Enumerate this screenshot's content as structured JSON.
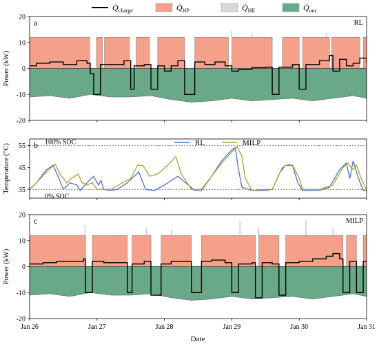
{
  "figure": {
    "legend": [
      {
        "id": "charge",
        "label": "Q̇",
        "sub": "charge",
        "kind": "line",
        "color": "#000000"
      },
      {
        "id": "hp",
        "label": "Q̇",
        "sub": "HP",
        "kind": "patch",
        "color": "#f4a08a"
      },
      {
        "id": "he",
        "label": "Q̇",
        "sub": "HE",
        "kind": "patch",
        "color": "#d9d9d9"
      },
      {
        "id": "out",
        "label": "Q̇",
        "sub": "out",
        "kind": "patch",
        "color": "#6aa88a"
      }
    ],
    "xlabel": "Date",
    "x_ticks": [
      "Jan 26",
      "Jan 27",
      "Jan 28",
      "Jan 29",
      "Jan 30",
      "Jan 31"
    ]
  },
  "colors": {
    "hp": "#f4a08a",
    "he": "#d9d9d9",
    "out": "#6aa88a",
    "rl": "#4a6fd0",
    "milp": "#a6a22c",
    "charge": "#000000"
  },
  "chart_data": [
    {
      "panel": "a",
      "tag": "RL",
      "type": "area",
      "ylabel": "Power (kW)",
      "ylim": [
        -20,
        20
      ],
      "yticks": [
        -20,
        -10,
        0,
        10,
        20
      ],
      "x_unit": "days since Jan 26",
      "hp_level": 12,
      "he_spikes": [
        [
          3.0,
          14.5
        ],
        [
          3.3,
          13.8
        ],
        [
          4.4,
          13.6
        ]
      ],
      "hp_off_intervals": [
        [
          0.89,
          0.99
        ],
        [
          1.08,
          1.11
        ],
        [
          1.48,
          1.58
        ],
        [
          1.78,
          1.9
        ],
        [
          2.3,
          2.45
        ],
        [
          2.95,
          3.0
        ],
        [
          3.6,
          3.75
        ],
        [
          4.0,
          4.05
        ],
        [
          4.45,
          4.48
        ],
        [
          4.9,
          4.95
        ]
      ],
      "series": [
        {
          "name": "Q_out",
          "values": [
            [
              0,
              -11
            ],
            [
              0.3,
              -10.5
            ],
            [
              0.6,
              -11.5
            ],
            [
              0.9,
              -10
            ],
            [
              1.2,
              -11
            ],
            [
              1.5,
              -11
            ],
            [
              1.8,
              -10.5
            ],
            [
              2.1,
              -12
            ],
            [
              2.4,
              -13
            ],
            [
              2.7,
              -12.5
            ],
            [
              3.0,
              -11.5
            ],
            [
              3.3,
              -12.5
            ],
            [
              3.6,
              -12
            ],
            [
              3.9,
              -11.5
            ],
            [
              4.2,
              -12.5
            ],
            [
              4.5,
              -11.5
            ],
            [
              4.8,
              -10.5
            ],
            [
              5.0,
              -11.5
            ]
          ]
        },
        {
          "name": "Q_charge",
          "values": [
            [
              0,
              1
            ],
            [
              0.1,
              2
            ],
            [
              0.3,
              2.5
            ],
            [
              0.5,
              1.5
            ],
            [
              0.7,
              3
            ],
            [
              0.85,
              2
            ],
            [
              0.9,
              -2
            ],
            [
              0.95,
              -10
            ],
            [
              1.05,
              1.5
            ],
            [
              1.2,
              1.5
            ],
            [
              1.4,
              3
            ],
            [
              1.5,
              -8
            ],
            [
              1.55,
              1
            ],
            [
              1.7,
              1.5
            ],
            [
              1.8,
              -8
            ],
            [
              1.9,
              1
            ],
            [
              2.0,
              -1
            ],
            [
              2.1,
              1
            ],
            [
              2.2,
              3
            ],
            [
              2.3,
              -10
            ],
            [
              2.45,
              2.5
            ],
            [
              2.6,
              1.5
            ],
            [
              2.75,
              2.5
            ],
            [
              2.9,
              1
            ],
            [
              3.0,
              -1
            ],
            [
              3.1,
              -0.3
            ],
            [
              3.3,
              0.3
            ],
            [
              3.5,
              0.5
            ],
            [
              3.6,
              -10
            ],
            [
              3.7,
              0.5
            ],
            [
              3.9,
              1.5
            ],
            [
              4.0,
              -8
            ],
            [
              4.1,
              1.5
            ],
            [
              4.3,
              3
            ],
            [
              4.45,
              5
            ],
            [
              4.5,
              -1
            ],
            [
              4.6,
              3.5
            ],
            [
              4.7,
              1
            ],
            [
              4.8,
              2
            ],
            [
              4.9,
              4
            ],
            [
              5.0,
              2
            ]
          ]
        }
      ]
    },
    {
      "panel": "b",
      "type": "line",
      "ylabel": "Temperature (°C)",
      "ylim": [
        31,
        58
      ],
      "yticks": [
        35,
        45,
        55
      ],
      "x_unit": "days since Jan 26",
      "annotations": [
        {
          "text": "100% SOC",
          "y": 55
        },
        {
          "text": "0% SOC",
          "y": 35
        }
      ],
      "series": [
        {
          "name": "RL",
          "values": [
            [
              0,
              35
            ],
            [
              0.1,
              38
            ],
            [
              0.25,
              44
            ],
            [
              0.35,
              46
            ],
            [
              0.42,
              41
            ],
            [
              0.5,
              35
            ],
            [
              0.6,
              38
            ],
            [
              0.7,
              37
            ],
            [
              0.75,
              34.5
            ],
            [
              0.85,
              38
            ],
            [
              0.95,
              41
            ],
            [
              1.02,
              37
            ],
            [
              1.06,
              39
            ],
            [
              1.1,
              35
            ],
            [
              1.2,
              34.5
            ],
            [
              1.3,
              35
            ],
            [
              1.45,
              38
            ],
            [
              1.62,
              43
            ],
            [
              1.72,
              35
            ],
            [
              1.85,
              34.5
            ],
            [
              2.0,
              37
            ],
            [
              2.2,
              41
            ],
            [
              2.45,
              34.5
            ],
            [
              2.55,
              34.5
            ],
            [
              2.7,
              41
            ],
            [
              2.85,
              48
            ],
            [
              3.0,
              53
            ],
            [
              3.05,
              54
            ],
            [
              3.1,
              44
            ],
            [
              3.15,
              36
            ],
            [
              3.3,
              34.5
            ],
            [
              3.5,
              34.5
            ],
            [
              3.6,
              35
            ],
            [
              3.72,
              43
            ],
            [
              3.8,
              46
            ],
            [
              3.9,
              46
            ],
            [
              3.98,
              38
            ],
            [
              4.05,
              34.5
            ],
            [
              4.3,
              34.5
            ],
            [
              4.45,
              36
            ],
            [
              4.6,
              44
            ],
            [
              4.7,
              47
            ],
            [
              4.75,
              40
            ],
            [
              4.8,
              48
            ],
            [
              4.88,
              40
            ],
            [
              4.95,
              34.5
            ],
            [
              5.0,
              34.5
            ]
          ]
        },
        {
          "name": "MILP",
          "values": [
            [
              0,
              35
            ],
            [
              0.1,
              38
            ],
            [
              0.25,
              43
            ],
            [
              0.38,
              46.5
            ],
            [
              0.45,
              42
            ],
            [
              0.55,
              38
            ],
            [
              0.62,
              40
            ],
            [
              0.72,
              42
            ],
            [
              0.78,
              38
            ],
            [
              0.85,
              37
            ],
            [
              0.93,
              38
            ],
            [
              1.0,
              35
            ],
            [
              1.2,
              35
            ],
            [
              1.5,
              40
            ],
            [
              1.6,
              46
            ],
            [
              1.68,
              46
            ],
            [
              1.78,
              41
            ],
            [
              1.9,
              42
            ],
            [
              2.05,
              46
            ],
            [
              2.17,
              50
            ],
            [
              2.25,
              42
            ],
            [
              2.4,
              35
            ],
            [
              2.55,
              35
            ],
            [
              2.7,
              41
            ],
            [
              2.85,
              47
            ],
            [
              3.0,
              52
            ],
            [
              3.08,
              54.5
            ],
            [
              3.15,
              50
            ],
            [
              3.2,
              40
            ],
            [
              3.3,
              34.5
            ],
            [
              3.5,
              35
            ],
            [
              3.6,
              35
            ],
            [
              3.75,
              45
            ],
            [
              3.85,
              46.5
            ],
            [
              3.92,
              45
            ],
            [
              4.0,
              40
            ],
            [
              4.05,
              35
            ],
            [
              4.3,
              35
            ],
            [
              4.5,
              37
            ],
            [
              4.65,
              45
            ],
            [
              4.72,
              47
            ],
            [
              4.8,
              44
            ],
            [
              4.85,
              46
            ],
            [
              4.92,
              40
            ],
            [
              5.0,
              34.5
            ]
          ]
        }
      ],
      "legend": [
        {
          "name": "RL",
          "color": "#4a6fd0"
        },
        {
          "name": "MILP",
          "color": "#a6a22c"
        }
      ]
    },
    {
      "panel": "c",
      "tag": "MILP",
      "type": "area",
      "ylabel": "Power (kW)",
      "ylim": [
        -20,
        20
      ],
      "yticks": [
        -20,
        -10,
        0,
        10,
        20
      ],
      "x_unit": "days since Jan 26",
      "hp_level": 12,
      "he_spikes": [
        [
          0.82,
          16
        ],
        [
          1.73,
          15
        ],
        [
          2.1,
          14
        ],
        [
          3.12,
          17.5
        ],
        [
          3.4,
          15
        ],
        [
          4.1,
          18
        ],
        [
          4.5,
          15
        ]
      ],
      "hp_off_intervals": [
        [
          0.83,
          0.93
        ],
        [
          1.45,
          1.52
        ],
        [
          1.8,
          1.95
        ],
        [
          2.4,
          2.55
        ],
        [
          3.35,
          3.4
        ],
        [
          3.7,
          3.8
        ],
        [
          4.65,
          4.7
        ],
        [
          4.85,
          4.95
        ]
      ],
      "series": [
        {
          "name": "Q_out",
          "values": [
            [
              0,
              -11
            ],
            [
              0.3,
              -10.5
            ],
            [
              0.6,
              -11.5
            ],
            [
              0.9,
              -10
            ],
            [
              1.2,
              -11
            ],
            [
              1.5,
              -11
            ],
            [
              1.8,
              -10.5
            ],
            [
              2.1,
              -12
            ],
            [
              2.4,
              -13
            ],
            [
              2.7,
              -12.5
            ],
            [
              3.0,
              -11.5
            ],
            [
              3.3,
              -12.5
            ],
            [
              3.6,
              -12
            ],
            [
              3.9,
              -11.5
            ],
            [
              4.2,
              -12.5
            ],
            [
              4.5,
              -11.5
            ],
            [
              4.8,
              -10.5
            ],
            [
              5.0,
              -11.5
            ]
          ]
        },
        {
          "name": "Q_charge",
          "values": [
            [
              0,
              1
            ],
            [
              0.2,
              1.5
            ],
            [
              0.4,
              2
            ],
            [
              0.6,
              2
            ],
            [
              0.8,
              3
            ],
            [
              0.83,
              -10
            ],
            [
              0.93,
              2
            ],
            [
              1.1,
              1.5
            ],
            [
              1.3,
              1.5
            ],
            [
              1.45,
              -10
            ],
            [
              1.52,
              1
            ],
            [
              1.7,
              2
            ],
            [
              1.8,
              -11
            ],
            [
              1.95,
              1
            ],
            [
              2.1,
              2
            ],
            [
              2.3,
              2
            ],
            [
              2.4,
              -10
            ],
            [
              2.55,
              2
            ],
            [
              2.7,
              2.5
            ],
            [
              2.9,
              1.5
            ],
            [
              3.0,
              -10
            ],
            [
              3.1,
              1
            ],
            [
              3.3,
              1.5
            ],
            [
              3.35,
              -12
            ],
            [
              3.45,
              1.5
            ],
            [
              3.6,
              1
            ],
            [
              3.7,
              -11
            ],
            [
              3.8,
              1.5
            ],
            [
              4.0,
              2
            ],
            [
              4.2,
              3
            ],
            [
              4.4,
              4
            ],
            [
              4.5,
              5
            ],
            [
              4.6,
              3
            ],
            [
              4.65,
              -10
            ],
            [
              4.75,
              2
            ],
            [
              4.85,
              -10
            ],
            [
              4.95,
              2
            ],
            [
              5.0,
              2
            ]
          ]
        }
      ]
    }
  ]
}
